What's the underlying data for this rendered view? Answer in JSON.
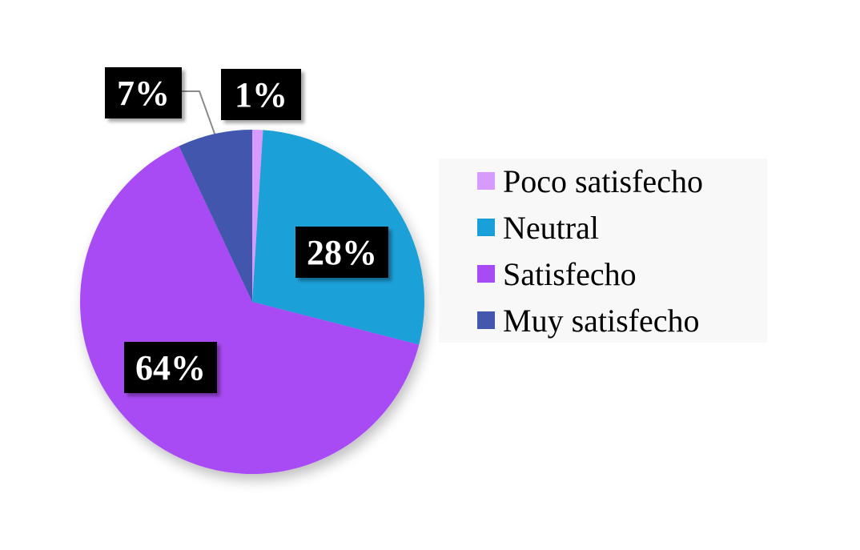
{
  "chart_data": {
    "type": "pie",
    "categories": [
      "Poco satisfecho",
      "Neutral",
      "Satisfecho",
      "Muy satisfecho"
    ],
    "values": [
      1,
      28,
      64,
      7
    ],
    "data_labels": [
      "1%",
      "28%",
      "64%",
      "7%"
    ],
    "colors": [
      "#D79BFF",
      "#1AA0D8",
      "#A94BF5",
      "#4257AD"
    ],
    "legend": {
      "placement": "right",
      "entries": [
        "Poco satisfecho",
        "Neutral",
        "Satisfecho",
        "Muy satisfecho"
      ]
    },
    "start_angle": "12 o'clock",
    "direction": "clockwise"
  }
}
